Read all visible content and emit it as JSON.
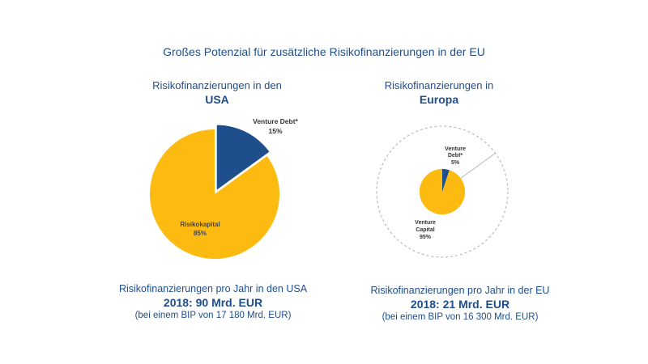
{
  "title": "Großes Potenzial für zusätzliche Risikofinanzierungen in der EU",
  "colors": {
    "accent": "#1f4e8c",
    "venture_debt": "#1f4e8c",
    "risk_capital": "#fdbb12",
    "dashed": "#b5b5b5"
  },
  "chart_data": [
    {
      "type": "pie",
      "heading_line1": "Risikofinanzierungen in den",
      "heading_line2": "USA",
      "slices": [
        {
          "label": "Venture Debt*",
          "value": 15,
          "display": "15%"
        },
        {
          "label": "Risikokapital",
          "value": 85,
          "display": "85%"
        }
      ],
      "footer_line1": "Risikofinanzierungen pro Jahr in den USA",
      "footer_line2": "2018: 90 Mrd. EUR",
      "footer_line3": "(bei einem BIP von 17 180 Mrd. EUR)",
      "total_bn_eur": 90
    },
    {
      "type": "pie",
      "heading_line1": "Risikofinanzierungen in",
      "heading_line2": "Europa",
      "slices": [
        {
          "label_line1": "Venture",
          "label_line2": "Debt*",
          "value": 5,
          "display": "5%"
        },
        {
          "label_line1": "Venture",
          "label_line2": "Capital",
          "value": 95,
          "display": "95%"
        }
      ],
      "footer_line1": "Risikofinanzierungen pro Jahr in der EU",
      "footer_line2": "2018: 21 Mrd. EUR",
      "footer_line3": "(bei einem BIP von 16 300 Mrd. EUR)",
      "total_bn_eur": 21
    }
  ]
}
